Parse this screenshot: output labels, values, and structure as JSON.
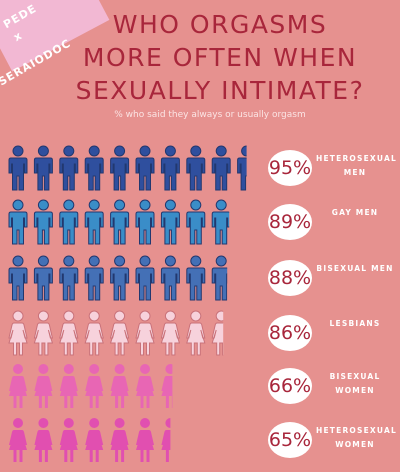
{
  "chart_data": {
    "type": "pictograph",
    "credit": [
      "PEDE",
      "x",
      "SERAIODOC"
    ],
    "title": "WHO ORGASMS MORE OFTEN WHEN SEXUALLY INTIMATE?",
    "subtitle": "% who said they always or usually orgasm",
    "categories": [
      "HETEROSEXUAL MEN",
      "GAY MEN",
      "BISEXUAL MEN",
      "LESBIANS",
      "BISEXUAL WOMEN",
      "HETEROSEXUAL WOMEN"
    ],
    "values": [
      95,
      89,
      88,
      86,
      66,
      65
    ],
    "value_labels": [
      "95%",
      "89%",
      "88%",
      "86%",
      "66%",
      "65%"
    ],
    "colors": [
      "#2f4f9e",
      "#3a8dc8",
      "#4470b6",
      "#f7d2dc",
      "#e866b4",
      "#e14fb0"
    ],
    "icons": [
      "man",
      "man",
      "man",
      "woman",
      "woman",
      "woman"
    ]
  }
}
